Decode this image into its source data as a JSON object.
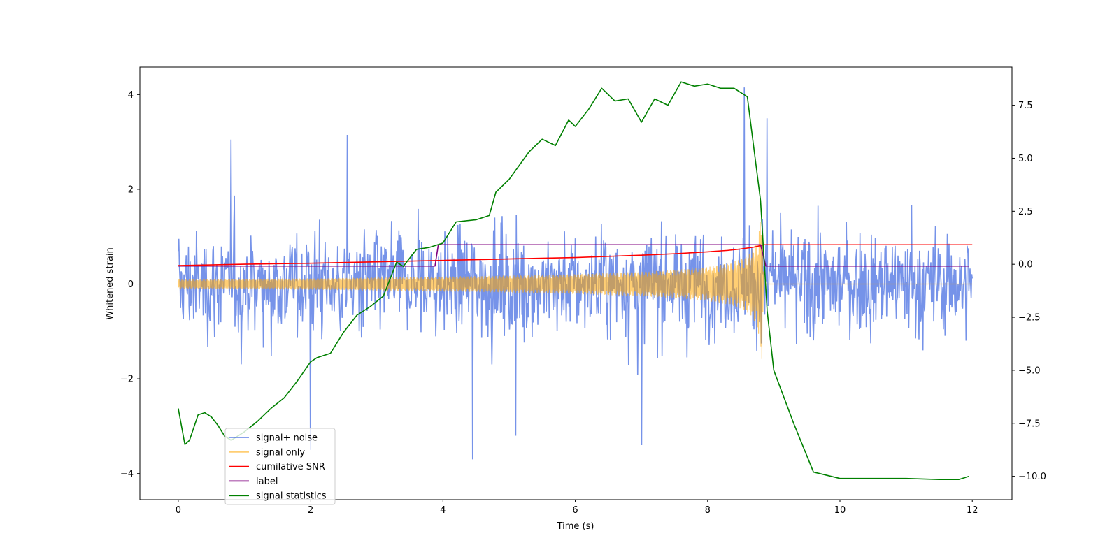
{
  "chart_data": {
    "type": "line",
    "title": "",
    "xlabel": "Time (s)",
    "ylabel": "Whitened strain",
    "y2label": "",
    "xlim": [
      -0.58,
      12.6
    ],
    "ylim": [
      -4.55,
      4.58
    ],
    "y2lim": [
      -11.1,
      9.3
    ],
    "x_ticks": [
      0,
      2,
      4,
      6,
      8,
      10,
      12
    ],
    "x_tick_labels": [
      "0",
      "2",
      "4",
      "6",
      "8",
      "10",
      "12"
    ],
    "y_ticks": [
      -4,
      -2,
      0,
      2,
      4
    ],
    "y_tick_labels": [
      "−4",
      "−2",
      "0",
      "2",
      "4"
    ],
    "y2_ticks": [
      -10,
      -7.5,
      -5,
      -2.5,
      0,
      2.5,
      5,
      7.5
    ],
    "y2_tick_labels": [
      "−10.0",
      "−7.5",
      "−5.0",
      "−2.5",
      "0.0",
      "2.5",
      "5.0",
      "7.5"
    ],
    "grid": false,
    "legend_position": "lower-left",
    "series": [
      {
        "name": "signal+ noise",
        "color": "#4169e1",
        "axis": "left",
        "kind": "noise-band",
        "x_range": [
          0,
          12
        ],
        "typical_amplitude": 1.5,
        "max_peak": 4.15,
        "min_peak": -3.7,
        "notable_peaks": [
          [
            0.8,
            3.05
          ],
          [
            2.55,
            3.15
          ],
          [
            8.55,
            4.15
          ],
          [
            8.9,
            3.5
          ],
          [
            4.45,
            -3.7
          ],
          [
            2.0,
            -3.5
          ],
          [
            7.0,
            -3.4
          ],
          [
            5.1,
            -3.2
          ]
        ]
      },
      {
        "name": "signal only",
        "color": "#ffa500",
        "axis": "left",
        "kind": "chirp-envelope",
        "x": [
          0,
          1,
          2,
          3,
          4,
          5,
          6,
          7,
          7.5,
          8,
          8.3,
          8.5,
          8.65,
          8.75,
          8.82,
          8.85,
          12
        ],
        "envelope": [
          0.1,
          0.11,
          0.12,
          0.14,
          0.16,
          0.18,
          0.21,
          0.26,
          0.3,
          0.36,
          0.43,
          0.52,
          0.65,
          0.9,
          1.6,
          0.0,
          0.0
        ]
      },
      {
        "name": "cumilative SNR",
        "color": "#ff0000",
        "axis": "left",
        "x": [
          0,
          1,
          2,
          3,
          4,
          5,
          6,
          7,
          7.5,
          8,
          8.3,
          8.5,
          8.7,
          8.82,
          8.85,
          12
        ],
        "y": [
          0.39,
          0.42,
          0.44,
          0.47,
          0.5,
          0.53,
          0.56,
          0.61,
          0.64,
          0.68,
          0.71,
          0.74,
          0.78,
          0.82,
          0.83,
          0.83
        ]
      },
      {
        "name": "label",
        "color": "#800080",
        "axis": "left",
        "x": [
          0,
          3.88,
          3.93,
          8.8,
          8.88,
          11.95
        ],
        "y": [
          0.38,
          0.38,
          0.83,
          0.83,
          0.38,
          0.38
        ]
      },
      {
        "name": "signal statistics",
        "color": "#008000",
        "axis": "right",
        "x": [
          0,
          0.1,
          0.17,
          0.3,
          0.4,
          0.5,
          0.6,
          0.7,
          0.8,
          1.0,
          1.2,
          1.4,
          1.6,
          1.8,
          2.0,
          2.1,
          2.3,
          2.5,
          2.7,
          2.9,
          3.1,
          3.3,
          3.4,
          3.5,
          3.6,
          3.8,
          4.0,
          4.2,
          4.5,
          4.7,
          4.8,
          5.0,
          5.3,
          5.5,
          5.7,
          5.9,
          6.0,
          6.2,
          6.4,
          6.6,
          6.8,
          7.0,
          7.2,
          7.4,
          7.6,
          7.8,
          8.0,
          8.2,
          8.4,
          8.6,
          8.8,
          8.9,
          9.0,
          9.3,
          9.6,
          10.0,
          10.5,
          11.0,
          11.5,
          11.8,
          11.95
        ],
        "y": [
          -6.8,
          -8.5,
          -8.3,
          -7.1,
          -7.0,
          -7.2,
          -7.6,
          -8.1,
          -8.3,
          -7.9,
          -7.4,
          -6.8,
          -6.3,
          -5.5,
          -4.6,
          -4.4,
          -4.2,
          -3.2,
          -2.4,
          -2.0,
          -1.5,
          0.1,
          -0.1,
          0.3,
          0.7,
          0.8,
          1.0,
          2.0,
          2.1,
          2.3,
          3.4,
          4.0,
          5.3,
          5.9,
          5.6,
          6.8,
          6.5,
          7.3,
          8.3,
          7.7,
          7.8,
          6.7,
          7.8,
          7.5,
          8.6,
          8.4,
          8.5,
          8.3,
          8.3,
          7.9,
          3.0,
          -2.2,
          -5.0,
          -7.5,
          -9.8,
          -10.1,
          -10.1,
          -10.1,
          -10.15,
          -10.15,
          -10.0
        ]
      }
    ]
  }
}
